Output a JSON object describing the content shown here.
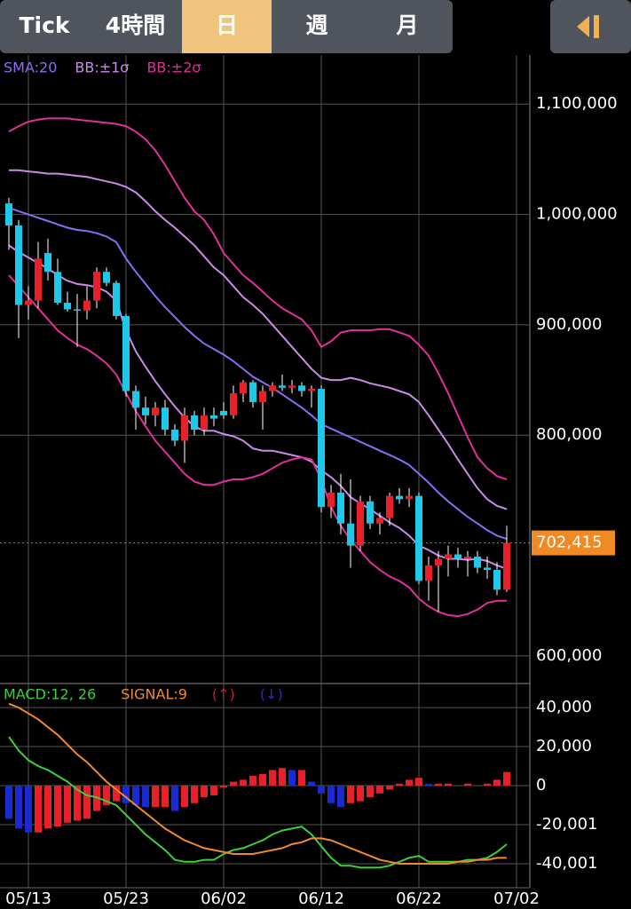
{
  "tabs": [
    "Tick",
    "4時間",
    "日",
    "週",
    "月"
  ],
  "selected_tab": 2,
  "chart_data": [
    {
      "type": "candlestick",
      "up_color": "#e8202a",
      "down_color": "#1ec8e8",
      "open": [
        1010000,
        990000,
        918000,
        922000,
        965000,
        948000,
        920000,
        914000,
        913000,
        922000,
        948000,
        938000,
        908000,
        840000,
        825000,
        818000,
        825000,
        805000,
        795000,
        818000,
        805000,
        818000,
        822000,
        818000,
        838000,
        848000,
        830000,
        840000,
        845000,
        843000,
        845000,
        840000,
        842000,
        735000,
        748000,
        720000,
        700000,
        740000,
        720000,
        725000,
        745000,
        742000,
        745000,
        668000,
        682000,
        688000,
        692000,
        688000,
        690000,
        680000,
        678000,
        660000,
        null
      ],
      "high": [
        1015000,
        995000,
        935000,
        975000,
        978000,
        960000,
        930000,
        928000,
        935000,
        952000,
        952000,
        940000,
        910000,
        845000,
        835000,
        830000,
        832000,
        810000,
        825000,
        822000,
        825000,
        825000,
        830000,
        845000,
        850000,
        850000,
        845000,
        848000,
        855000,
        850000,
        848000,
        845000,
        845000,
        755000,
        765000,
        760000,
        745000,
        745000,
        730000,
        748000,
        752000,
        752000,
        748000,
        690000,
        695000,
        700000,
        698000,
        695000,
        695000,
        690000,
        685000,
        718000,
        null
      ],
      "low": [
        968000,
        888000,
        905000,
        915000,
        940000,
        918000,
        912000,
        880000,
        905000,
        915000,
        935000,
        905000,
        835000,
        805000,
        810000,
        808000,
        800000,
        790000,
        775000,
        800000,
        800000,
        808000,
        815000,
        815000,
        830000,
        825000,
        805000,
        835000,
        840000,
        838000,
        835000,
        825000,
        730000,
        725000,
        710000,
        680000,
        695000,
        715000,
        710000,
        718000,
        738000,
        735000,
        665000,
        650000,
        640000,
        672000,
        680000,
        672000,
        675000,
        670000,
        655000,
        658000,
        null
      ],
      "close": [
        990000,
        918000,
        922000,
        960000,
        948000,
        920000,
        914000,
        913000,
        922000,
        948000,
        938000,
        908000,
        840000,
        825000,
        818000,
        825000,
        805000,
        795000,
        818000,
        805000,
        818000,
        815000,
        818000,
        838000,
        848000,
        830000,
        840000,
        845000,
        843000,
        845000,
        840000,
        842000,
        735000,
        748000,
        720000,
        700000,
        740000,
        720000,
        725000,
        745000,
        742000,
        745000,
        668000,
        682000,
        688000,
        692000,
        688000,
        690000,
        680000,
        678000,
        660000,
        702415,
        null
      ],
      "series": [
        {
          "name": "SMA:20",
          "color": "#8e6cf2",
          "values": [
            1006000,
            1003000,
            1000000,
            997000,
            994000,
            991000,
            988000,
            986000,
            985000,
            983000,
            980000,
            975000,
            960000,
            948000,
            937000,
            926000,
            916000,
            907000,
            898000,
            890000,
            883000,
            878000,
            873000,
            867000,
            860000,
            853000,
            848000,
            843000,
            837000,
            831000,
            825000,
            818000,
            810000,
            806000,
            802000,
            798000,
            794000,
            790000,
            786000,
            782000,
            778000,
            773000,
            765000,
            757000,
            748000,
            740000,
            733000,
            726000,
            720000,
            714000,
            709000,
            706000,
            null
          ]
        },
        {
          "name": "BB:±1σ",
          "color": "#c98be8",
          "upper": [
            1040000,
            1040000,
            1039000,
            1038000,
            1037000,
            1037000,
            1036000,
            1035000,
            1034000,
            1032000,
            1030000,
            1028000,
            1025000,
            1020000,
            1012000,
            1003000,
            995000,
            988000,
            980000,
            972000,
            962000,
            952000,
            945000,
            935000,
            925000,
            918000,
            910000,
            900000,
            890000,
            880000,
            870000,
            860000,
            852000,
            850000,
            850000,
            852000,
            850000,
            847000,
            845000,
            843000,
            840000,
            837000,
            830000,
            818000,
            805000,
            792000,
            778000,
            765000,
            752000,
            742000,
            736000,
            733000,
            null
          ],
          "lower": [
            972000,
            966000,
            961000,
            956000,
            951000,
            945000,
            940000,
            937000,
            936000,
            934000,
            930000,
            922000,
            895000,
            876000,
            862000,
            849000,
            837000,
            826000,
            816000,
            808000,
            804000,
            804000,
            801000,
            799000,
            795000,
            788000,
            786000,
            786000,
            784000,
            782000,
            780000,
            776000,
            768000,
            762000,
            754000,
            744000,
            738000,
            733000,
            727000,
            721000,
            716000,
            709000,
            700000,
            696000,
            691000,
            688000,
            688000,
            687000,
            688000,
            686000,
            682000,
            679000,
            null
          ]
        },
        {
          "name": "BB:±2σ",
          "color": "#e0309a",
          "upper": [
            1075000,
            1080000,
            1084000,
            1086000,
            1087000,
            1087000,
            1087000,
            1086000,
            1085000,
            1084000,
            1083000,
            1082000,
            1080000,
            1075000,
            1068000,
            1058000,
            1045000,
            1030000,
            1015000,
            1003000,
            995000,
            982000,
            965000,
            955000,
            945000,
            938000,
            930000,
            922000,
            915000,
            910000,
            905000,
            895000,
            880000,
            885000,
            893000,
            895000,
            895000,
            895000,
            896000,
            896000,
            893000,
            890000,
            882000,
            872000,
            856000,
            838000,
            818000,
            798000,
            780000,
            770000,
            763000,
            760000,
            null
          ],
          "lower": [
            945000,
            935000,
            925000,
            915000,
            905000,
            895000,
            888000,
            882000,
            878000,
            872000,
            865000,
            855000,
            838000,
            822000,
            808000,
            795000,
            785000,
            775000,
            765000,
            758000,
            755000,
            755000,
            758000,
            760000,
            760000,
            762000,
            765000,
            770000,
            775000,
            778000,
            780000,
            778000,
            760000,
            735000,
            718000,
            705000,
            695000,
            685000,
            678000,
            672000,
            668000,
            662000,
            652000,
            645000,
            640000,
            637000,
            636000,
            638000,
            642000,
            648000,
            650000,
            650000,
            null
          ]
        }
      ],
      "ylim": [
        575000,
        1138000
      ],
      "yticks": [
        {
          "value": 600000,
          "label": "600,000"
        },
        {
          "value": 800000,
          "label": "800,000"
        },
        {
          "value": 900000,
          "label": "900,000"
        },
        {
          "value": 1000000,
          "label": "1,000,000"
        },
        {
          "value": 1100000,
          "label": "1,100,000"
        }
      ],
      "last_price": {
        "value": 702415,
        "label": "702,415"
      },
      "last_price_color": "#f08a24",
      "grid": true
    },
    {
      "type": "macd",
      "categories": [
        null,
        null,
        "05/13",
        null,
        null,
        null,
        null,
        null,
        null,
        null,
        null,
        null,
        "05/23",
        null,
        null,
        null,
        null,
        null,
        null,
        null,
        null,
        null,
        "06/02",
        null,
        null,
        null,
        null,
        null,
        null,
        null,
        null,
        null,
        "06/12",
        null,
        null,
        null,
        null,
        null,
        null,
        null,
        null,
        null,
        "06/22",
        null,
        null,
        null,
        null,
        null,
        null,
        null,
        null,
        null,
        "07/02"
      ],
      "series": [
        {
          "name": "MACD:12, 26",
          "color": "#3ccf3c",
          "values": [
            25000,
            18000,
            13000,
            10000,
            8000,
            5000,
            2000,
            -2000,
            -5000,
            -6000,
            -8000,
            -10000,
            -15000,
            -20000,
            -25000,
            -29000,
            -33000,
            -38000,
            -39000,
            -39000,
            -38000,
            -38000,
            -35000,
            -33000,
            -32000,
            -30000,
            -28000,
            -25000,
            -23000,
            -22000,
            -21000,
            -25000,
            -31000,
            -37000,
            -41000,
            -41000,
            -42000,
            -42000,
            -42000,
            -41000,
            -39000,
            -37000,
            -36000,
            -39000,
            -39000,
            -39000,
            -39000,
            -38000,
            -38000,
            -37000,
            -34000,
            -30000,
            null
          ]
        },
        {
          "name": "SIGNAL:9",
          "color": "#f08a30",
          "values": [
            42000,
            40000,
            37000,
            34000,
            30000,
            26000,
            21000,
            16000,
            12000,
            7000,
            2000,
            -2000,
            -6000,
            -10000,
            -14000,
            -18000,
            -22000,
            -25000,
            -28000,
            -30000,
            -32000,
            -33000,
            -34000,
            -35000,
            -35000,
            -35000,
            -34000,
            -33000,
            -32000,
            -30000,
            -29000,
            -27000,
            -27000,
            -28000,
            -30000,
            -32000,
            -34000,
            -36000,
            -38000,
            -39000,
            -40000,
            -40000,
            -40000,
            -40000,
            -40000,
            -40000,
            -39000,
            -39000,
            -38000,
            -38000,
            -37000,
            -37000,
            null
          ]
        }
      ],
      "histogram": {
        "values": [
          -17000,
          -22000,
          -24000,
          -24000,
          -22000,
          -21000,
          -19000,
          -18000,
          -17000,
          -13000,
          -10000,
          -8000,
          -9000,
          -10000,
          -11000,
          -11000,
          -11000,
          -13000,
          -11000,
          -9000,
          -6000,
          -5000,
          -1000,
          2000,
          3000,
          5000,
          6000,
          8000,
          9000,
          8000,
          8000,
          2000,
          -4000,
          -9000,
          -11000,
          -9000,
          -8000,
          -6000,
          -4000,
          -2000,
          1000,
          3000,
          4000,
          1000,
          1000,
          1000,
          0,
          1000,
          0,
          1000,
          3000,
          7000,
          null
        ],
        "up_color": "#e8202a",
        "down_color": "#1a2ad0"
      },
      "markers": [
        {
          "name": "(↑)",
          "color": "#c82020"
        },
        {
          "name": "(↓)",
          "color": "#2030c0"
        }
      ],
      "ylim": [
        -52300,
        51400
      ],
      "yticks": [
        {
          "value": -40001,
          "label": "-40,001"
        },
        {
          "value": -20001,
          "label": "-20,001"
        },
        0,
        {
          "value": 20000,
          "label": "20,000"
        },
        {
          "value": 40000,
          "label": "40,000"
        }
      ],
      "grid": true
    }
  ]
}
